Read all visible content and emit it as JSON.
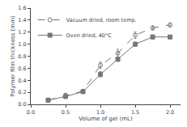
{
  "chart_data": {
    "type": "line",
    "xlabel": "Volume of gel (mL)",
    "ylabel": "Polymer film thickness (mm)",
    "x": [
      0.25,
      0.5,
      0.75,
      1.0,
      1.25,
      1.5,
      1.75,
      2.0
    ],
    "color": "#777777",
    "series": [
      {
        "name": "Vacuum dried, room temp.",
        "values": [
          0.07,
          0.15,
          0.22,
          0.65,
          0.85,
          1.15,
          1.27,
          1.32
        ],
        "yerr": [
          0.02,
          0.035,
          0.025,
          0.055,
          0.065,
          0.055,
          0.035,
          0.035
        ],
        "marker": "open_circle",
        "line_style": "dashed"
      },
      {
        "name": "Oven dried, 40°C",
        "values": [
          0.07,
          0.13,
          0.21,
          0.5,
          0.75,
          1.0,
          1.12,
          1.12
        ],
        "yerr": [
          0.02,
          0.03,
          0.025,
          0.045,
          0.035,
          0.035,
          0.035,
          0.025
        ],
        "marker": "square",
        "line_style": "solid"
      }
    ],
    "xlim": [
      0.0,
      2.15
    ],
    "ylim": [
      0.0,
      1.6
    ],
    "xticks": [
      {
        "value": 0.0,
        "label": "0.0"
      },
      0.5,
      {
        "value": 1.0,
        "label": "1.0"
      },
      1.5,
      {
        "value": 2.0,
        "label": "2.0"
      }
    ],
    "yticks": [
      {
        "value": 0.0,
        "label": "0.0"
      },
      0.2,
      0.4,
      0.6,
      0.8,
      {
        "value": 1.0,
        "label": "1.0"
      },
      1.2,
      1.4,
      1.6
    ],
    "grid": false,
    "legend": "upper left"
  }
}
